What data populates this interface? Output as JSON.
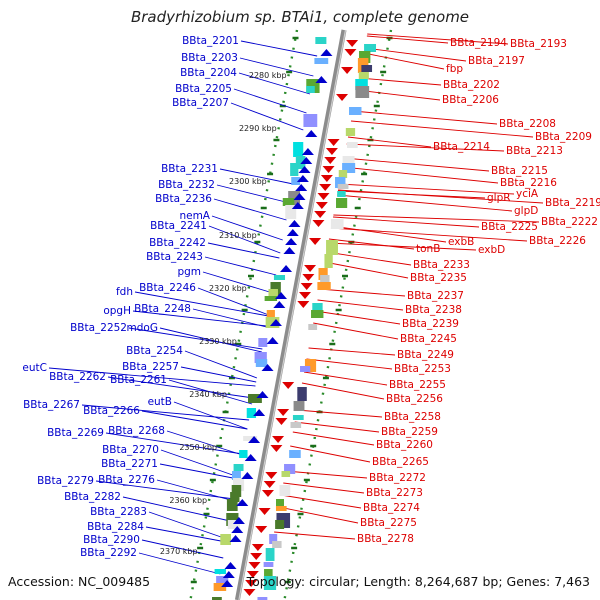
{
  "title": "Bradyrhizobium sp. BTAi1, complete genome",
  "footer": {
    "accession": "Accession: NC_009485",
    "summary": "Topology: circular; Length: 8,264,687 bp; Genes: 7,463"
  },
  "colors": {
    "left_strand": "#0000cc",
    "right_strand": "#dd0000",
    "ruler_dot": "#2a8a2a",
    "ruler_tick": "#1a6e1a",
    "backbone": "#8c8c8c"
  },
  "kbp_labels": [
    "2280 kbp",
    "2290 kbp",
    "2300 kbp",
    "2310 kbp",
    "2320 kbp",
    "2330 kbp",
    "2340 kbp",
    "2350 kbp",
    "2360 kbp",
    "2370 kbp"
  ],
  "left_genes": [
    "BBta_2201",
    "BBta_2203",
    "BBta_2204",
    "BBta_2205",
    "BBta_2207",
    "BBta_2231",
    "BBta_2232",
    "BBta_2236",
    "nemA",
    "BBta_2241",
    "BBta_2242",
    "BBta_2243",
    "pgm",
    "fdh",
    "BBta_2246",
    "opgH",
    "BBta_2248",
    "BBta_2252",
    "mdoG",
    "BBta_2254",
    "BBta_2257",
    "eutC",
    "BBta_2262",
    "BBta_2261",
    "eutB",
    "BBta_2267",
    "BBta_2266",
    "BBta_2269",
    "BBta_2268",
    "BBta_2270",
    "BBta_2271",
    "BBta_2279",
    "BBta_2276",
    "BBta_2282",
    "BBta_2283",
    "BBta_2284",
    "BBta_2290",
    "BBta_2292"
  ],
  "right_genes": [
    "BBta_2194",
    "BBta_2193",
    "BBta_2197",
    "fbp",
    "BBta_2202",
    "BBta_2206",
    "BBta_2208",
    "BBta_2209",
    "BBta_2213",
    "BBta_2214",
    "BBta_2215",
    "BBta_2216",
    "glpR",
    "yciA",
    "BBta_2219",
    "glpD",
    "BBta_2222",
    "BBta_2225",
    "BBta_2226",
    "exbB",
    "exbD",
    "tonB",
    "BBta_2233",
    "BBta_2235",
    "BBta_2237",
    "BBta_2238",
    "BBta_2239",
    "BBta_2245",
    "BBta_2249",
    "BBta_2253",
    "BBta_2255",
    "BBta_2256",
    "BBta_2258",
    "BBta_2259",
    "BBta_2260",
    "BBta_2265",
    "BBta_2272",
    "BBta_2273",
    "BBta_2274",
    "BBta_2275",
    "BBta_2278"
  ]
}
